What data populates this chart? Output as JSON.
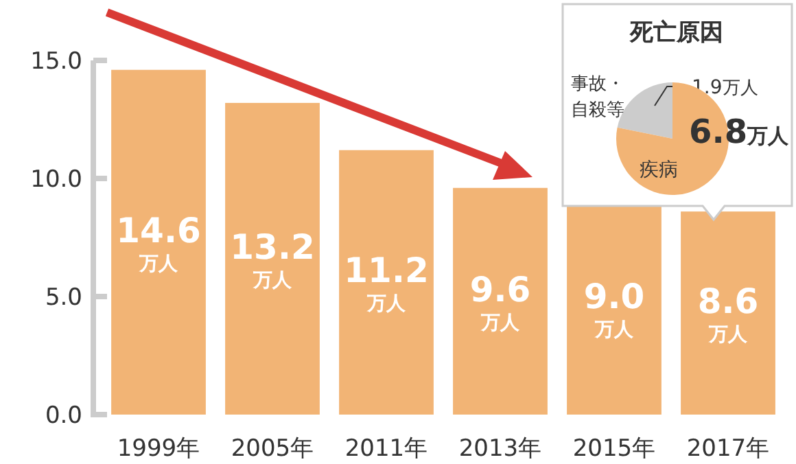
{
  "chart_data": [
    {
      "type": "bar",
      "categories": [
        "1999年",
        "2005年",
        "2011年",
        "2013年",
        "2015年",
        "2017年"
      ],
      "values": [
        14.6,
        13.2,
        11.2,
        9.6,
        9.0,
        8.6
      ],
      "value_labels": [
        "14.6万人",
        "13.2万人",
        "11.2万人",
        "9.6万人",
        "9.0万人",
        "8.6万人"
      ],
      "color": "#f2b475",
      "ylim": [
        0,
        15
      ],
      "yticks": [
        {
          "value": 0,
          "label": "0.0"
        },
        {
          "value": 5,
          "label": "5.0"
        },
        {
          "value": 10,
          "label": "10.0"
        },
        {
          "value": 15,
          "label": "15.0"
        }
      ]
    },
    {
      "type": "pie",
      "title": "死亡原因",
      "categories": [
        "事故・自殺等",
        "疾病"
      ],
      "values": [
        1.9,
        6.8
      ],
      "value_labels": [
        "1.9万人",
        "6.8万人"
      ],
      "colors": [
        "#cccccc",
        "#f2b475"
      ]
    }
  ]
}
